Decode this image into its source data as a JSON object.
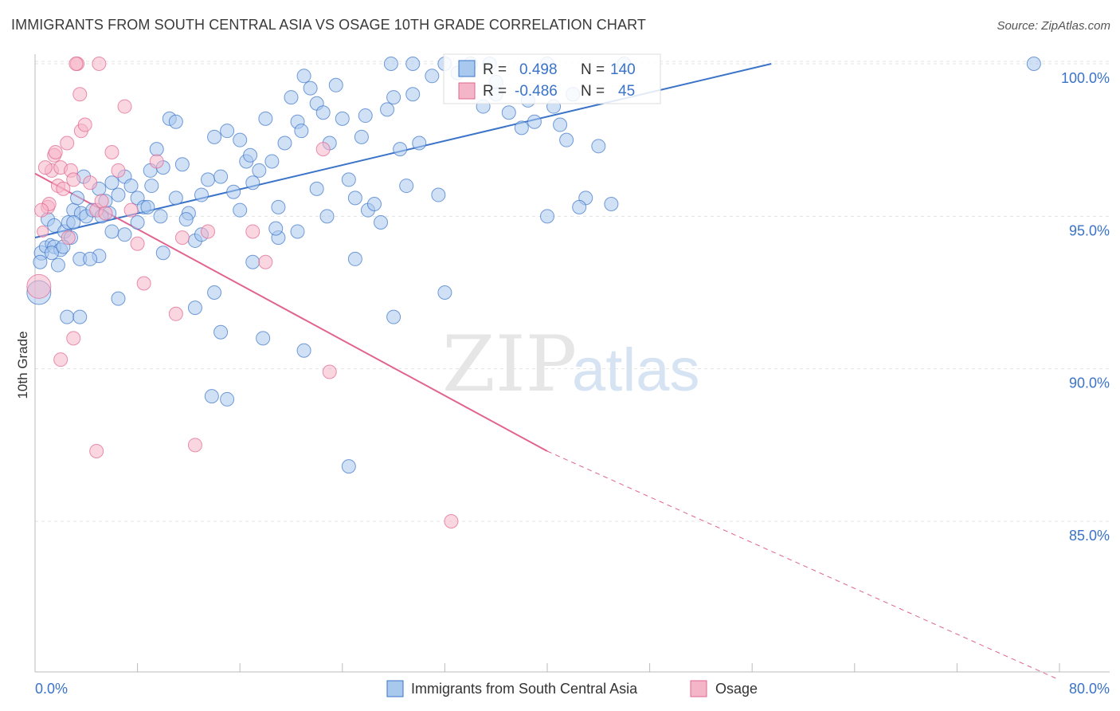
{
  "header": {
    "title": "IMMIGRANTS FROM SOUTH CENTRAL ASIA VS OSAGE 10TH GRADE CORRELATION CHART",
    "source": "Source: ZipAtlas.com"
  },
  "watermark": {
    "zip": "ZIP",
    "atlas": "atlas"
  },
  "chart_data": {
    "type": "scatter",
    "title": "IMMIGRANTS FROM SOUTH CENTRAL ASIA VS OSAGE 10TH GRADE CORRELATION CHART",
    "xlabel": "",
    "ylabel": "10th Grade",
    "xlim": [
      0,
      80
    ],
    "ylim": [
      80,
      100.5
    ],
    "x_tick_labels": [
      "0.0%",
      "80.0%"
    ],
    "y_ticks": [
      85,
      90,
      95,
      100
    ],
    "y_tick_labels": [
      "85.0%",
      "90.0%",
      "95.0%",
      "100.0%"
    ],
    "grid": true,
    "legend_position": "bottom",
    "colors": {
      "blue": "#3a73c8",
      "blue_fill": "#a9c8ee",
      "pink": "#e0648f",
      "pink_fill": "#f5b5c8",
      "axis_text": "#3a73c8",
      "grid": "#e3e3e3"
    },
    "stats": [
      {
        "r_label": "R =",
        "r_value": "0.498",
        "n_label": "N =",
        "n_value": "140"
      },
      {
        "r_label": "R =",
        "r_value": "-0.486",
        "n_label": "N =",
        "n_value": "45"
      }
    ],
    "series": [
      {
        "name": "Immigrants from South Central Asia",
        "trend": {
          "x0": 0,
          "y0": 94.3,
          "x1": 57.5,
          "y1": 100.0
        },
        "points": [
          [
            0.3,
            92.5
          ],
          [
            0.5,
            93.8
          ],
          [
            0.8,
            94.0
          ],
          [
            1.2,
            94.1
          ],
          [
            1.5,
            94.0
          ],
          [
            1.8,
            93.4
          ],
          [
            2.0,
            93.9
          ],
          [
            1.0,
            94.9
          ],
          [
            1.5,
            94.7
          ],
          [
            2.3,
            94.5
          ],
          [
            2.6,
            94.8
          ],
          [
            3.0,
            95.2
          ],
          [
            3.3,
            95.6
          ],
          [
            3.6,
            95.1
          ],
          [
            2.8,
            94.3
          ],
          [
            3.5,
            93.6
          ],
          [
            4.0,
            95.0
          ],
          [
            4.5,
            95.2
          ],
          [
            5.0,
            95.9
          ],
          [
            5.5,
            95.5
          ],
          [
            5.8,
            95.1
          ],
          [
            6.0,
            94.5
          ],
          [
            6.5,
            95.7
          ],
          [
            7.0,
            96.3
          ],
          [
            7.5,
            96.0
          ],
          [
            8.0,
            95.6
          ],
          [
            8.5,
            95.3
          ],
          [
            9.0,
            96.5
          ],
          [
            9.5,
            97.2
          ],
          [
            10.0,
            96.6
          ],
          [
            10.5,
            98.2
          ],
          [
            11.0,
            98.1
          ],
          [
            11.5,
            96.7
          ],
          [
            12.0,
            95.1
          ],
          [
            12.5,
            94.2
          ],
          [
            13.0,
            95.7
          ],
          [
            13.5,
            96.2
          ],
          [
            14.0,
            97.6
          ],
          [
            14.5,
            96.3
          ],
          [
            15.0,
            97.8
          ],
          [
            15.5,
            95.8
          ],
          [
            16.0,
            97.5
          ],
          [
            16.5,
            96.8
          ],
          [
            17.0,
            96.1
          ],
          [
            17.5,
            96.5
          ],
          [
            18.0,
            98.2
          ],
          [
            18.5,
            96.8
          ],
          [
            19.0,
            95.3
          ],
          [
            19.5,
            97.4
          ],
          [
            20.0,
            98.9
          ],
          [
            20.5,
            98.1
          ],
          [
            21.0,
            99.6
          ],
          [
            21.5,
            99.2
          ],
          [
            22.0,
            98.7
          ],
          [
            22.5,
            98.4
          ],
          [
            23.0,
            97.4
          ],
          [
            23.5,
            99.3
          ],
          [
            24.0,
            98.2
          ],
          [
            24.5,
            96.2
          ],
          [
            25.0,
            95.6
          ],
          [
            25.5,
            97.6
          ],
          [
            26.0,
            95.2
          ],
          [
            26.5,
            95.4
          ],
          [
            27.0,
            94.8
          ],
          [
            27.5,
            98.5
          ],
          [
            28.0,
            98.9
          ],
          [
            28.5,
            97.2
          ],
          [
            29.0,
            96.0
          ],
          [
            29.5,
            99.0
          ],
          [
            30.0,
            97.4
          ],
          [
            31.0,
            99.6
          ],
          [
            31.5,
            95.7
          ],
          [
            32.0,
            100.0
          ],
          [
            33.0,
            99.7
          ],
          [
            34.0,
            100.0
          ],
          [
            35.0,
            98.6
          ],
          [
            35.5,
            100.0
          ],
          [
            36.0,
            99.0
          ],
          [
            37.0,
            98.4
          ],
          [
            38.0,
            97.9
          ],
          [
            39.0,
            98.1
          ],
          [
            40.0,
            100.0
          ],
          [
            41.0,
            98.0
          ],
          [
            41.5,
            97.5
          ],
          [
            42.0,
            99.0
          ],
          [
            43.0,
            95.6
          ],
          [
            38.5,
            98.8
          ],
          [
            40.5,
            98.6
          ],
          [
            44.0,
            97.3
          ],
          [
            46.0,
            100.0
          ],
          [
            42.5,
            95.3
          ],
          [
            40.0,
            95.0
          ],
          [
            45.0,
            95.4
          ],
          [
            27.8,
            100.0
          ],
          [
            36.0,
            99.4
          ],
          [
            29.5,
            100.0
          ],
          [
            78.0,
            100.0
          ],
          [
            22.0,
            95.9
          ],
          [
            20.5,
            94.5
          ],
          [
            19.0,
            94.3
          ],
          [
            17.0,
            93.5
          ],
          [
            14.0,
            92.5
          ],
          [
            12.5,
            92.0
          ],
          [
            10.0,
            93.8
          ],
          [
            8.0,
            94.8
          ],
          [
            7.0,
            94.4
          ],
          [
            6.5,
            92.3
          ],
          [
            5.0,
            93.7
          ],
          [
            4.3,
            93.6
          ],
          [
            2.5,
            91.7
          ],
          [
            3.5,
            91.7
          ],
          [
            14.5,
            91.2
          ],
          [
            17.8,
            91.0
          ],
          [
            21.0,
            90.6
          ],
          [
            13.8,
            89.1
          ],
          [
            15.0,
            89.0
          ],
          [
            24.5,
            86.8
          ],
          [
            25.0,
            93.6
          ],
          [
            28.0,
            91.7
          ],
          [
            32.0,
            92.5
          ],
          [
            8.8,
            95.3
          ],
          [
            11.8,
            94.9
          ],
          [
            13.0,
            94.4
          ],
          [
            16.0,
            95.2
          ],
          [
            18.8,
            94.6
          ],
          [
            22.8,
            95.0
          ],
          [
            9.8,
            95.0
          ],
          [
            11.0,
            95.6
          ],
          [
            6.0,
            96.1
          ],
          [
            3.8,
            96.3
          ],
          [
            5.2,
            95.0
          ],
          [
            1.3,
            93.8
          ],
          [
            0.4,
            93.5
          ],
          [
            2.2,
            94.0
          ],
          [
            3.0,
            94.8
          ],
          [
            16.8,
            97.0
          ],
          [
            20.8,
            97.8
          ],
          [
            25.8,
            98.3
          ],
          [
            9.1,
            96.0
          ]
        ],
        "sizes": {
          "0": 30,
          "1": 18,
          "2": 15,
          "3": 13
        }
      },
      {
        "name": "Osage",
        "trend": {
          "x0": 0,
          "y0": 96.4,
          "x1": 40.0,
          "y1": 87.3,
          "dash_x1": 80,
          "dash_y1": 79.8
        },
        "points": [
          [
            0.3,
            92.7
          ],
          [
            0.6,
            94.5
          ],
          [
            1.0,
            95.3
          ],
          [
            1.3,
            96.5
          ],
          [
            1.5,
            97.0
          ],
          [
            1.8,
            96.0
          ],
          [
            2.0,
            96.6
          ],
          [
            2.2,
            95.9
          ],
          [
            2.5,
            97.4
          ],
          [
            2.8,
            96.5
          ],
          [
            3.0,
            96.2
          ],
          [
            3.3,
            100.0
          ],
          [
            3.6,
            97.8
          ],
          [
            3.9,
            98.0
          ],
          [
            4.3,
            96.1
          ],
          [
            4.8,
            95.2
          ],
          [
            5.2,
            95.5
          ],
          [
            5.5,
            95.1
          ],
          [
            6.0,
            97.1
          ],
          [
            6.5,
            96.5
          ],
          [
            7.0,
            98.6
          ],
          [
            7.5,
            95.2
          ],
          [
            8.0,
            94.1
          ],
          [
            8.5,
            92.8
          ],
          [
            9.5,
            96.8
          ],
          [
            11.0,
            91.8
          ],
          [
            11.5,
            94.3
          ],
          [
            12.5,
            87.5
          ],
          [
            13.5,
            94.5
          ],
          [
            17.0,
            94.5
          ],
          [
            18.0,
            93.5
          ],
          [
            22.5,
            97.2
          ],
          [
            23.0,
            89.9
          ],
          [
            32.5,
            85.0
          ],
          [
            3.2,
            100.0
          ],
          [
            5.0,
            100.0
          ],
          [
            0.8,
            96.6
          ],
          [
            1.1,
            95.4
          ],
          [
            2.0,
            90.3
          ],
          [
            3.0,
            91.0
          ],
          [
            4.8,
            87.3
          ],
          [
            2.6,
            94.3
          ],
          [
            1.6,
            97.1
          ],
          [
            0.5,
            95.2
          ],
          [
            3.5,
            99.0
          ]
        ],
        "sizes": {
          "0": 30,
          "1": 14
        }
      }
    ]
  },
  "legend": {
    "items": [
      {
        "label": "Immigrants from South Central Asia"
      },
      {
        "label": "Osage"
      }
    ]
  }
}
